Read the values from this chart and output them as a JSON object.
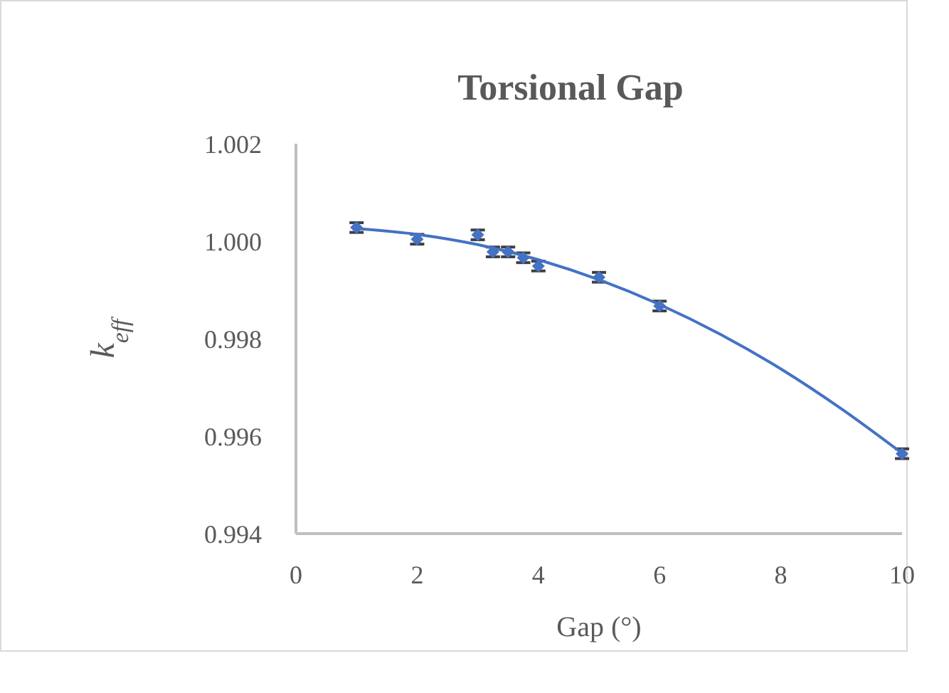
{
  "chart_data": {
    "type": "scatter",
    "title": "Torsional Gap",
    "xlabel": "Gap (°)",
    "ylabel": "k$_{eff}$",
    "xlim": [
      0,
      10
    ],
    "xticks": [
      0,
      2,
      4,
      6,
      8,
      10
    ],
    "ylim": [
      0.994,
      1.002
    ],
    "yticks": [
      0.994,
      0.996,
      0.998,
      {
        "value": 1.0,
        "label": "1.000"
      },
      1.002
    ],
    "grid": false,
    "marker": "diamond",
    "series": [
      {
        "color": "#4472c4",
        "x": [
          1,
          2,
          3,
          3.25,
          3.5,
          3.75,
          4,
          5,
          6,
          10
        ],
        "values": [
          1.00028,
          1.00004,
          1.00013,
          0.99978,
          0.99978,
          0.99966,
          0.99949,
          0.99926,
          0.99867,
          0.99564
        ],
        "errors": [
          0.0001,
          0.0001,
          0.0001,
          0.0001,
          0.0001,
          0.0001,
          0.0001,
          0.0001,
          0.0001,
          0.0001
        ]
      },
      {
        "type": "line",
        "color": "#4472c4",
        "marker": "none",
        "line_style": "solid",
        "x": [
          1,
          2,
          3,
          4,
          5,
          6,
          7,
          8,
          9,
          10
        ],
        "values": [
          1.00026,
          1.00014,
          0.99993,
          0.99962,
          0.99921,
          0.9987,
          0.99809,
          0.99738,
          0.99656,
          0.99565
        ]
      }
    ]
  }
}
